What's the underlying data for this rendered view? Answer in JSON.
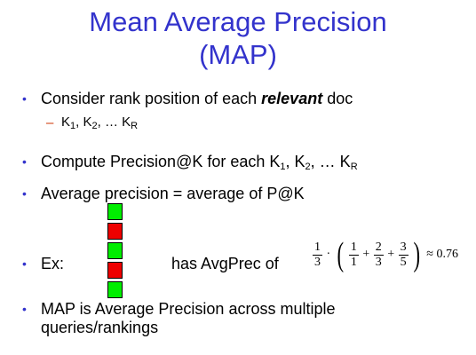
{
  "title": {
    "line1": "Mean Average Precision",
    "line2": "(MAP)"
  },
  "bullets": [
    {
      "pre": "Consider rank position of each ",
      "em": "relevant",
      "post": " doc"
    },
    {
      "pre": "Compute Precision@K for each K",
      "s1": "1",
      "mid": ", K",
      "s2": "2",
      "post": ", … K",
      "s3": "R"
    },
    {
      "text": "Average precision = average of P@K"
    },
    {
      "label": "Ex:",
      "suffix": "has AvgPrec of"
    },
    {
      "line1": "MAP is Average Precision across multiple",
      "line2": "queries/rankings"
    }
  ],
  "sub_bullet": {
    "k": "K",
    "s1": "1",
    "sep1": ", K",
    "s2": "2",
    "sep2": ", … K",
    "s3": "R"
  },
  "relevance_boxes": [
    {
      "relevant": true,
      "color": "#00ee00"
    },
    {
      "relevant": false,
      "color": "#ee0000"
    },
    {
      "relevant": true,
      "color": "#00ee00"
    },
    {
      "relevant": false,
      "color": "#ee0000"
    },
    {
      "relevant": true,
      "color": "#00ee00"
    }
  ],
  "formula": {
    "outer_num": "1",
    "outer_den": "3",
    "dot": "·",
    "f1_num": "1",
    "f1_den": "1",
    "f2_num": "2",
    "f2_den": "3",
    "f3_num": "3",
    "f3_den": "5",
    "plus": "+",
    "approx": "≈ 0.76"
  },
  "colors": {
    "title": "#3333cc",
    "bullet": "#3333cc",
    "sub_dash": "#cc3300"
  }
}
